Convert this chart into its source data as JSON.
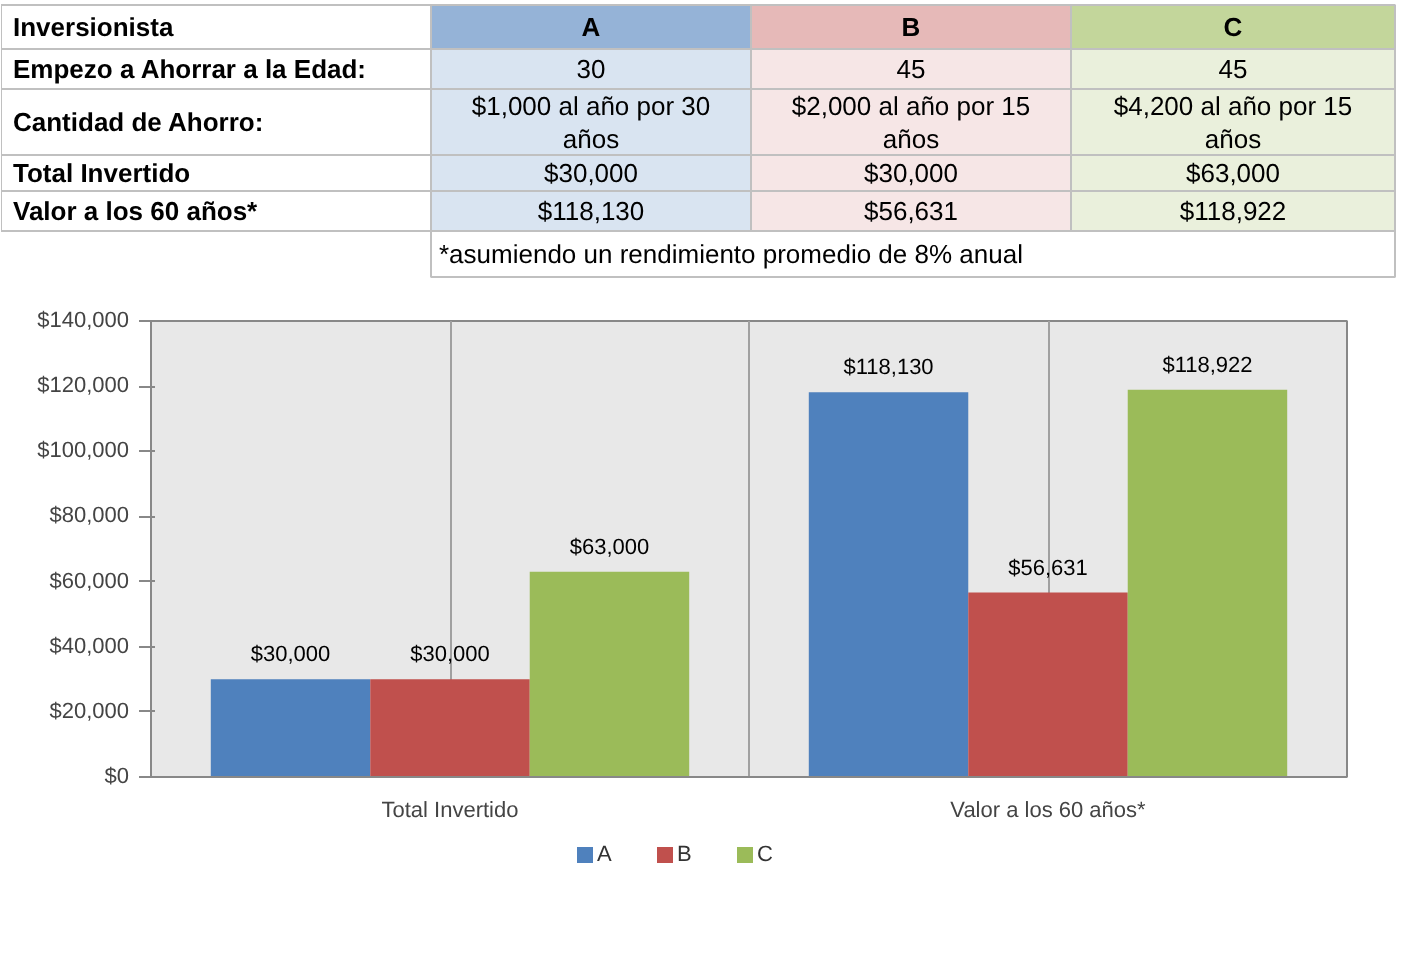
{
  "chart_data": [
    {
      "type": "other",
      "colors": [
        "#95b3d7",
        "#e6b9b8",
        "#c3d69b"
      ],
      "annotations": [
        "Inversionista",
        "A",
        "B",
        "C",
        "Empezo a Ahorrar a la Edad:",
        "30",
        "45",
        "45",
        "Cantidad de Ahorro:",
        "$1,000 al año por 30 años",
        "$2,000 al año por 15 años",
        "$4,200 al año por 15 años",
        "Total Invertido",
        "$30,000",
        "$30,000",
        "$63,000",
        "Valor a los 60 años*",
        "$118,130",
        "$56,631",
        "$118,922",
        "*asumiendo un rendimiento promedio de 8% anual"
      ]
    },
    {
      "type": "bar",
      "categories": [
        "Total Invertido",
        "Valor a los 60 años*"
      ],
      "series": [
        {
          "name": "A",
          "color": "#4f81bd",
          "values": [
            30000,
            118130
          ],
          "value_labels": [
            "$30,000",
            "$118,130"
          ]
        },
        {
          "name": "B",
          "color": "#c0504d",
          "values": [
            30000,
            56631
          ],
          "value_labels": [
            "$30,000",
            "$56,631"
          ]
        },
        {
          "name": "C",
          "color": "#9bbb59",
          "values": [
            63000,
            118922
          ],
          "value_labels": [
            "$63,000",
            "$118,922"
          ]
        }
      ],
      "ylim": [
        0,
        140000
      ],
      "yticks": [
        {
          "value": 0,
          "label": "$0"
        },
        {
          "value": 20000,
          "label": "$20,000"
        },
        {
          "value": 40000,
          "label": "$40,000"
        },
        {
          "value": 60000,
          "label": "$60,000"
        },
        {
          "value": 80000,
          "label": "$80,000"
        },
        {
          "value": 100000,
          "label": "$100,000"
        },
        {
          "value": 120000,
          "label": "$120,000"
        },
        {
          "value": 140000,
          "label": "$140,000"
        }
      ],
      "grid": "x",
      "legend": "bottom"
    }
  ]
}
